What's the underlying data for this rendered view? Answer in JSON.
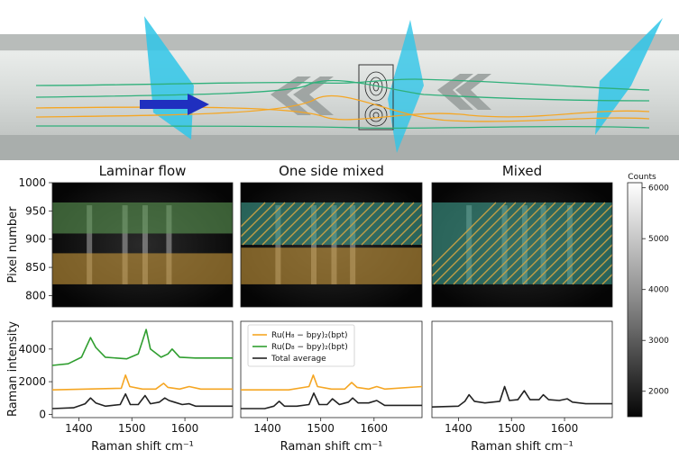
{
  "chart_data": [
    {
      "type": "heatmap",
      "title": "Laminar flow",
      "ylabel": "Pixel number",
      "ylim": [
        780,
        1000
      ],
      "yticks": [
        "1000",
        "950",
        "900",
        "850",
        "800"
      ],
      "regions": [
        {
          "band": [
            910,
            965
          ],
          "color": "#5e9a55",
          "hatched": false
        },
        {
          "band": [
            820,
            875
          ],
          "color": "#c99a3c",
          "hatched": false
        }
      ],
      "bright_columns_cm": [
        1420,
        1487,
        1525,
        1570
      ]
    },
    {
      "type": "heatmap",
      "title": "One side mixed",
      "ylim": [
        780,
        1000
      ],
      "regions": [
        {
          "band": [
            890,
            965
          ],
          "color": "#3fa08f",
          "hatched": true
        },
        {
          "band": [
            820,
            885
          ],
          "color": "#c99a3c",
          "hatched": false
        }
      ],
      "bright_columns_cm": [
        1420,
        1487,
        1525,
        1560
      ]
    },
    {
      "type": "heatmap",
      "title": "Mixed",
      "ylim": [
        780,
        1000
      ],
      "regions": [
        {
          "band": [
            820,
            965
          ],
          "color": "#3fa08f",
          "hatched": true
        }
      ],
      "bright_columns_cm": [
        1420,
        1487,
        1525,
        1560,
        1610
      ]
    },
    {
      "type": "line",
      "ylabel": "Raman intensity",
      "xlabel": "Raman shift cm⁻¹",
      "xlim": [
        1350,
        1690
      ],
      "ylim": [
        -200,
        5700
      ],
      "xticks": [
        "1400",
        "1500",
        "1600"
      ],
      "yticks": [
        "4000",
        "2000",
        "0"
      ],
      "series": [
        {
          "color": "#2f9e2f",
          "x": [
            1350,
            1380,
            1405,
            1415,
            1422,
            1432,
            1450,
            1490,
            1512,
            1522,
            1527,
            1535,
            1555,
            1568,
            1576,
            1590,
            1620,
            1690
          ],
          "y": [
            3000,
            3100,
            3500,
            4200,
            4700,
            4100,
            3500,
            3400,
            3700,
            4700,
            5200,
            4000,
            3500,
            3700,
            4000,
            3500,
            3450,
            3450
          ]
        },
        {
          "color": "#f5a623",
          "x": [
            1350,
            1480,
            1488,
            1496,
            1520,
            1545,
            1560,
            1568,
            1590,
            1608,
            1630,
            1690
          ],
          "y": [
            1500,
            1600,
            2400,
            1700,
            1550,
            1550,
            1900,
            1650,
            1550,
            1700,
            1550,
            1550
          ]
        },
        {
          "color": "#222222",
          "x": [
            1350,
            1390,
            1412,
            1422,
            1432,
            1450,
            1478,
            1488,
            1497,
            1512,
            1525,
            1535,
            1552,
            1562,
            1570,
            1580,
            1595,
            1608,
            1620,
            1690
          ],
          "y": [
            350,
            400,
            650,
            1000,
            700,
            500,
            600,
            1250,
            600,
            600,
            1150,
            650,
            750,
            1000,
            850,
            750,
            600,
            650,
            500,
            500
          ]
        }
      ]
    },
    {
      "type": "line",
      "xlabel": "Raman shift cm⁻¹",
      "xlim": [
        1350,
        1690
      ],
      "ylim": [
        -200,
        5700
      ],
      "xticks": [
        "1400",
        "1500",
        "1600"
      ],
      "legend": [
        {
          "label": "Ru(H₈ − bpy)₂(bpt)",
          "color": "#f5a623"
        },
        {
          "label": "Ru(D₈ − bpy)₂(bpt)",
          "color": "#2f9e2f"
        },
        {
          "label": "Total average",
          "color": "#222222"
        }
      ],
      "legend_position": "top-left",
      "series": [
        {
          "color": "#f5a623",
          "x": [
            1350,
            1440,
            1478,
            1486,
            1494,
            1520,
            1545,
            1558,
            1568,
            1590,
            1605,
            1620,
            1690
          ],
          "y": [
            1500,
            1500,
            1700,
            2400,
            1700,
            1550,
            1550,
            1950,
            1650,
            1550,
            1700,
            1550,
            1700
          ]
        },
        {
          "color": "#222222",
          "x": [
            1350,
            1395,
            1412,
            1422,
            1432,
            1455,
            1478,
            1487,
            1497,
            1512,
            1522,
            1535,
            1552,
            1560,
            1570,
            1590,
            1605,
            1620,
            1690
          ],
          "y": [
            350,
            350,
            500,
            800,
            500,
            500,
            600,
            1300,
            600,
            600,
            950,
            600,
            750,
            1000,
            700,
            700,
            850,
            550,
            550
          ]
        }
      ]
    },
    {
      "type": "line",
      "xlabel": "Raman shift cm⁻¹",
      "xlim": [
        1350,
        1690
      ],
      "ylim": [
        -200,
        5700
      ],
      "xticks": [
        "1400",
        "1500",
        "1600"
      ],
      "series": [
        {
          "color": "#222222",
          "x": [
            1350,
            1400,
            1412,
            1420,
            1430,
            1450,
            1478,
            1487,
            1496,
            1512,
            1524,
            1535,
            1552,
            1560,
            1570,
            1590,
            1605,
            1615,
            1640,
            1690
          ],
          "y": [
            450,
            500,
            800,
            1200,
            800,
            700,
            800,
            1700,
            850,
            900,
            1450,
            900,
            900,
            1200,
            900,
            850,
            950,
            750,
            650,
            650
          ]
        }
      ]
    }
  ],
  "colorbar": {
    "label": "Counts",
    "ticks": [
      "6000",
      "5000",
      "4000",
      "3000",
      "2000"
    ],
    "range": [
      1500,
      6100
    ]
  },
  "colors": {
    "channel_cyan": "#2fc6e8",
    "flow_arrow": "#1f2fbf",
    "stream_orange": "#f5a623",
    "stream_green": "#2fb07a"
  }
}
